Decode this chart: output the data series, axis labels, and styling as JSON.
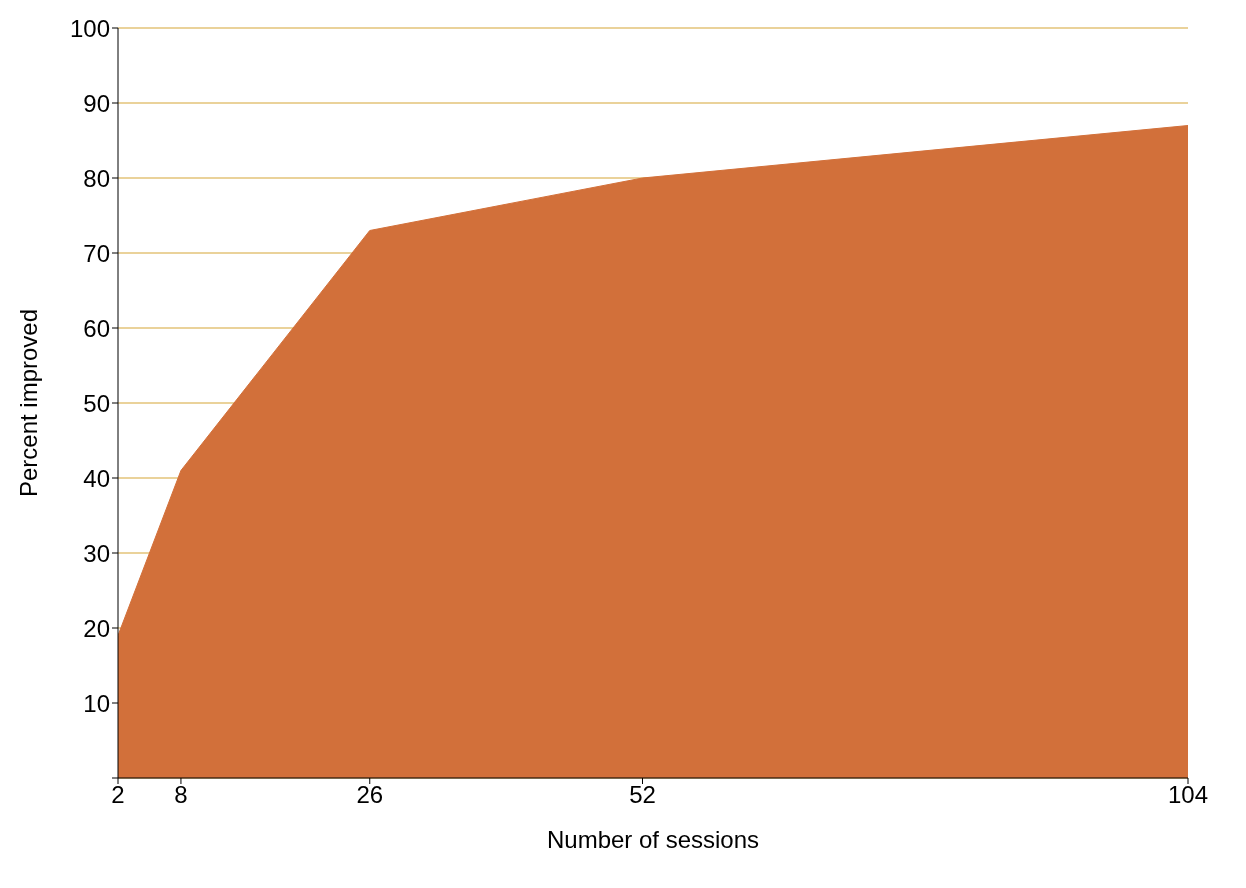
{
  "chart_data": {
    "type": "area",
    "xlabel": "Number of sessions",
    "ylabel": "Percent improved",
    "x": [
      2,
      8,
      26,
      52,
      104
    ],
    "series": [
      {
        "color": "#d2703a",
        "values": [
          19,
          41,
          73,
          80,
          87
        ]
      }
    ],
    "xlim": [
      2,
      104
    ],
    "xticks": [
      2,
      8,
      26,
      52,
      104
    ],
    "ylim": [
      0,
      100
    ],
    "yticks": [
      {
        "value": 0,
        "label": null
      },
      10,
      20,
      30,
      40,
      50,
      60,
      70,
      80,
      90,
      100
    ],
    "grid": "y"
  }
}
